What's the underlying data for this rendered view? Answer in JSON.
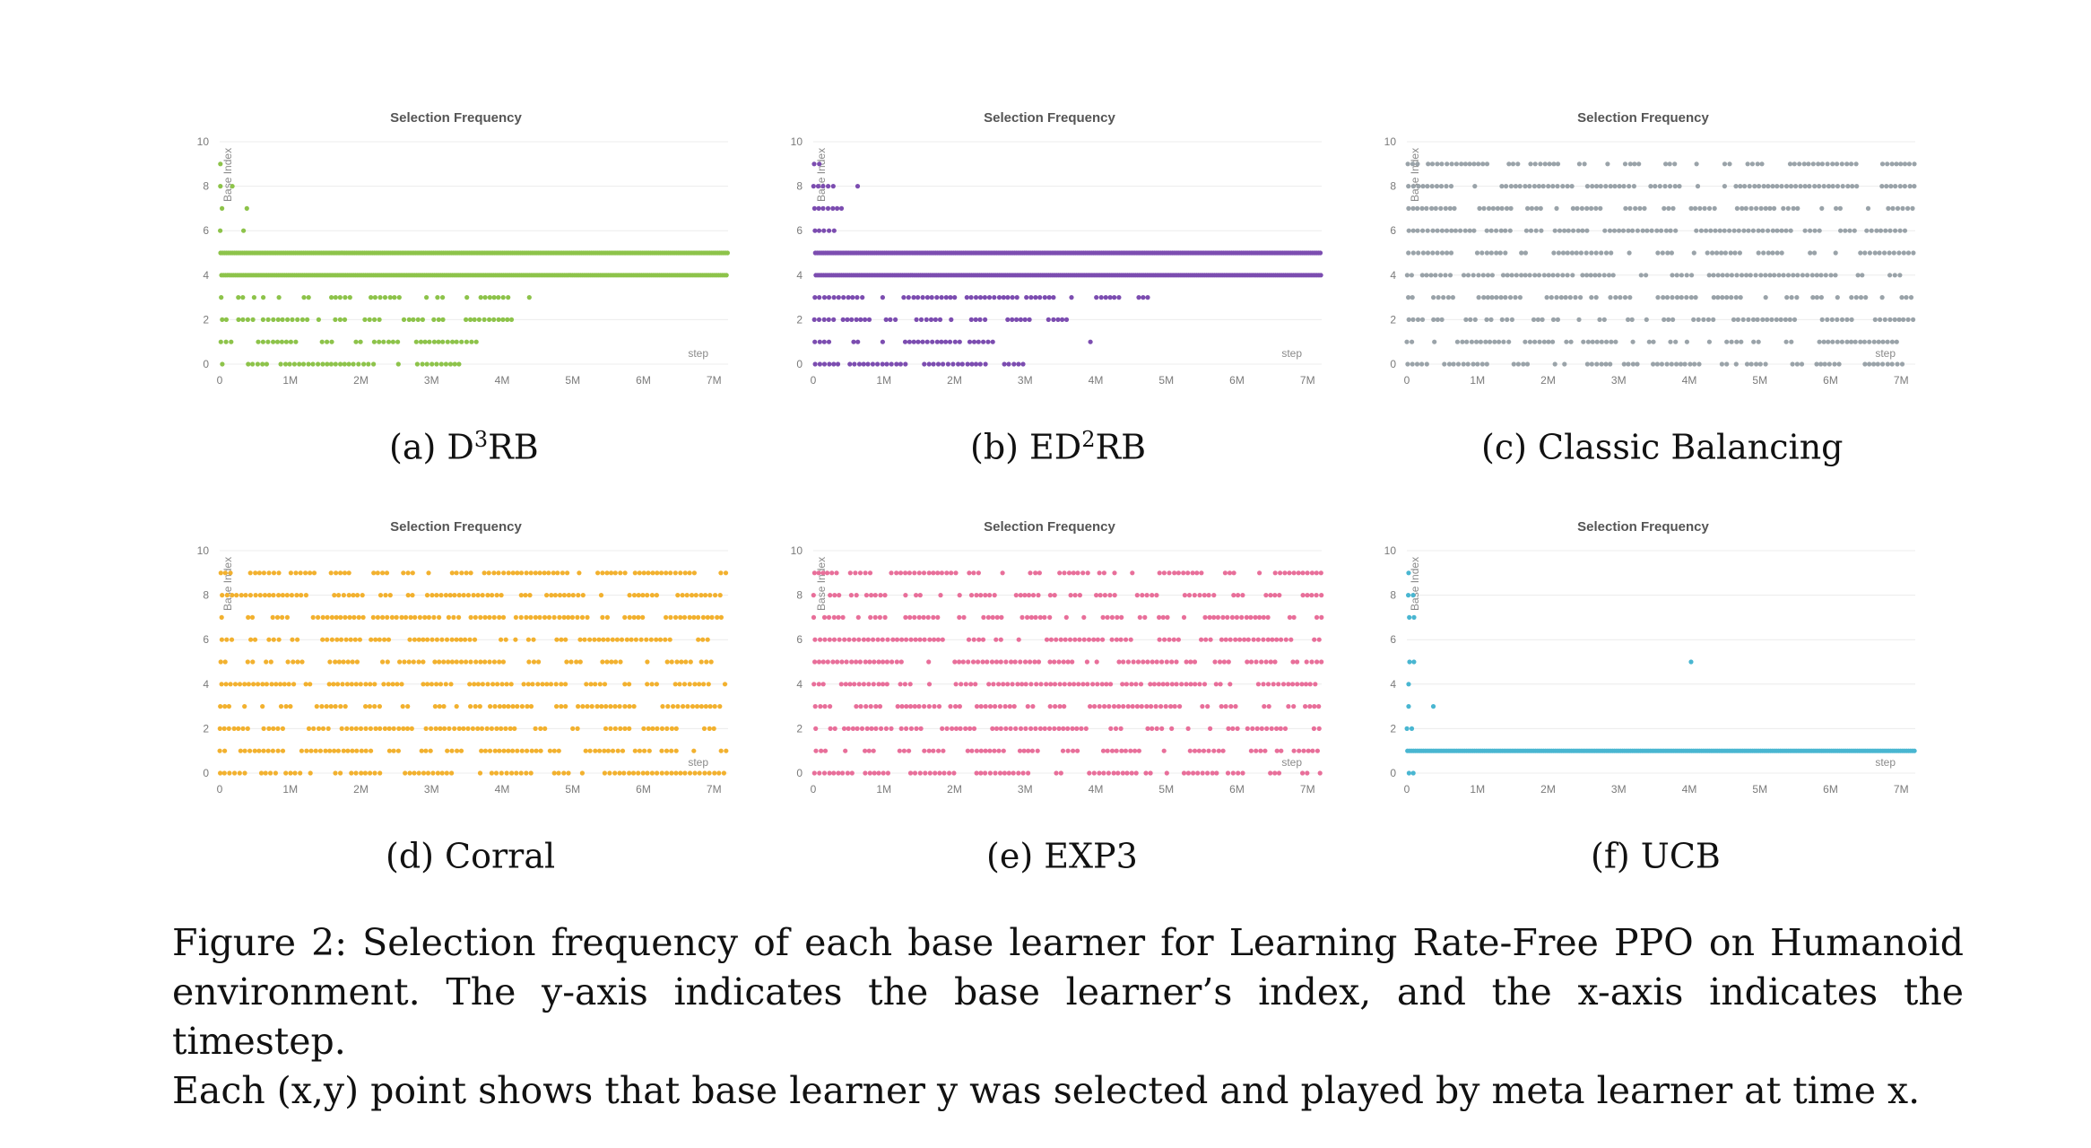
{
  "chart_data": [
    {
      "type": "scatter",
      "title": "Selection Frequency",
      "ylabel": "Base Index",
      "xlabel": "step",
      "xticks": [
        "0",
        "1M",
        "2M",
        "3M",
        "4M",
        "5M",
        "6M",
        "7M"
      ],
      "yticks": [
        "0",
        "2",
        "4",
        "6",
        "8",
        "10"
      ],
      "xlim": [
        0,
        7200000
      ],
      "ylim": [
        0,
        10
      ],
      "color": "#8dc34a",
      "series": [
        {
          "y": 9,
          "x_ranges": [
            [
              0,
              200000
            ]
          ]
        },
        {
          "y": 8,
          "x_ranges": [
            [
              0,
              400000
            ]
          ]
        },
        {
          "y": 7,
          "x_ranges": [
            [
              0,
              400000
            ]
          ]
        },
        {
          "y": 6,
          "x_ranges": [
            [
              0,
              350000
            ]
          ]
        },
        {
          "y": 5,
          "x_ranges": [
            [
              0,
              7200000
            ]
          ]
        },
        {
          "y": 4,
          "x_ranges": [
            [
              0,
              7200000
            ]
          ]
        },
        {
          "y": 3,
          "x_ranges": [
            [
              0,
              4450000
            ]
          ]
        },
        {
          "y": 2,
          "x_ranges": [
            [
              0,
              4250000
            ]
          ]
        },
        {
          "y": 1,
          "x_ranges": [
            [
              0,
              3800000
            ]
          ]
        },
        {
          "y": 0,
          "x_ranges": [
            [
              0,
              3400000
            ]
          ]
        }
      ]
    },
    {
      "type": "scatter",
      "title": "Selection Frequency",
      "ylabel": "Base Index",
      "xlabel": "step",
      "xticks": [
        "0",
        "1M",
        "2M",
        "3M",
        "4M",
        "5M",
        "6M",
        "7M"
      ],
      "yticks": [
        "0",
        "2",
        "4",
        "6",
        "8",
        "10"
      ],
      "xlim": [
        0,
        7200000
      ],
      "ylim": [
        0,
        10
      ],
      "color": "#7c4db0",
      "series": [
        {
          "y": 9,
          "x_ranges": [
            [
              0,
              300000
            ]
          ]
        },
        {
          "y": 8,
          "x_ranges": [
            [
              0,
              650000
            ]
          ]
        },
        {
          "y": 7,
          "x_ranges": [
            [
              0,
              450000
            ]
          ]
        },
        {
          "y": 6,
          "x_ranges": [
            [
              0,
              350000
            ]
          ]
        },
        {
          "y": 5,
          "x_ranges": [
            [
              0,
              7200000
            ]
          ]
        },
        {
          "y": 4,
          "x_ranges": [
            [
              0,
              7200000
            ]
          ]
        },
        {
          "y": 3,
          "x_ranges": [
            [
              0,
              5000000
            ]
          ]
        },
        {
          "y": 2,
          "x_ranges": [
            [
              0,
              3600000
            ]
          ]
        },
        {
          "y": 1,
          "x_ranges": [
            [
              0,
              2600000
            ],
            [
              3900000,
              3950000
            ]
          ]
        },
        {
          "y": 0,
          "x_ranges": [
            [
              0,
              3000000
            ]
          ]
        }
      ]
    },
    {
      "type": "scatter",
      "title": "Selection Frequency",
      "ylabel": "Base Index",
      "xlabel": "step",
      "xticks": [
        "0",
        "1M",
        "2M",
        "3M",
        "4M",
        "5M",
        "6M",
        "7M"
      ],
      "yticks": [
        "0",
        "2",
        "4",
        "6",
        "8",
        "10"
      ],
      "xlim": [
        0,
        7200000
      ],
      "ylim": [
        0,
        10
      ],
      "color": "#9aa3a9",
      "series": [
        {
          "y": 9,
          "x_ranges": [
            [
              0,
              7200000
            ]
          ]
        },
        {
          "y": 8,
          "x_ranges": [
            [
              0,
              7200000
            ]
          ]
        },
        {
          "y": 7,
          "x_ranges": [
            [
              0,
              7200000
            ]
          ]
        },
        {
          "y": 6,
          "x_ranges": [
            [
              0,
              7200000
            ]
          ]
        },
        {
          "y": 5,
          "x_ranges": [
            [
              0,
              7200000
            ]
          ]
        },
        {
          "y": 4,
          "x_ranges": [
            [
              0,
              7200000
            ]
          ]
        },
        {
          "y": 3,
          "x_ranges": [
            [
              0,
              7200000
            ]
          ]
        },
        {
          "y": 2,
          "x_ranges": [
            [
              0,
              7200000
            ]
          ]
        },
        {
          "y": 1,
          "x_ranges": [
            [
              0,
              7200000
            ]
          ]
        },
        {
          "y": 0,
          "x_ranges": [
            [
              0,
              7200000
            ]
          ]
        }
      ]
    },
    {
      "type": "scatter",
      "title": "Selection Frequency",
      "ylabel": "Base Index",
      "xlabel": "step",
      "xticks": [
        "0",
        "1M",
        "2M",
        "3M",
        "4M",
        "5M",
        "6M",
        "7M"
      ],
      "yticks": [
        "0",
        "2",
        "4",
        "6",
        "8",
        "10"
      ],
      "xlim": [
        0,
        7200000
      ],
      "ylim": [
        0,
        10
      ],
      "color": "#f2b12f",
      "series": [
        {
          "y": 9,
          "x_ranges": [
            [
              0,
              7200000
            ]
          ]
        },
        {
          "y": 8,
          "x_ranges": [
            [
              0,
              7200000
            ]
          ]
        },
        {
          "y": 7,
          "x_ranges": [
            [
              0,
              7200000
            ]
          ]
        },
        {
          "y": 6,
          "x_ranges": [
            [
              0,
              7200000
            ]
          ]
        },
        {
          "y": 5,
          "x_ranges": [
            [
              0,
              7200000
            ]
          ]
        },
        {
          "y": 4,
          "x_ranges": [
            [
              0,
              7200000
            ]
          ]
        },
        {
          "y": 3,
          "x_ranges": [
            [
              0,
              7200000
            ]
          ]
        },
        {
          "y": 2,
          "x_ranges": [
            [
              0,
              7200000
            ]
          ]
        },
        {
          "y": 1,
          "x_ranges": [
            [
              0,
              7200000
            ]
          ]
        },
        {
          "y": 0,
          "x_ranges": [
            [
              0,
              7200000
            ]
          ]
        }
      ]
    },
    {
      "type": "scatter",
      "title": "Selection Frequency",
      "ylabel": "Base Index",
      "xlabel": "step",
      "xticks": [
        "0",
        "1M",
        "2M",
        "3M",
        "4M",
        "5M",
        "6M",
        "7M"
      ],
      "yticks": [
        "0",
        "2",
        "4",
        "6",
        "8",
        "10"
      ],
      "xlim": [
        0,
        7200000
      ],
      "ylim": [
        0,
        10
      ],
      "color": "#e86f9a",
      "series": [
        {
          "y": 9,
          "x_ranges": [
            [
              0,
              7200000
            ]
          ]
        },
        {
          "y": 8,
          "x_ranges": [
            [
              0,
              7200000
            ]
          ]
        },
        {
          "y": 7,
          "x_ranges": [
            [
              0,
              7200000
            ]
          ]
        },
        {
          "y": 6,
          "x_ranges": [
            [
              0,
              7200000
            ]
          ]
        },
        {
          "y": 5,
          "x_ranges": [
            [
              0,
              7200000
            ]
          ]
        },
        {
          "y": 4,
          "x_ranges": [
            [
              0,
              7200000
            ]
          ]
        },
        {
          "y": 3,
          "x_ranges": [
            [
              0,
              7200000
            ]
          ]
        },
        {
          "y": 2,
          "x_ranges": [
            [
              0,
              7200000
            ]
          ]
        },
        {
          "y": 1,
          "x_ranges": [
            [
              0,
              7200000
            ]
          ]
        },
        {
          "y": 0,
          "x_ranges": [
            [
              0,
              7200000
            ]
          ]
        }
      ]
    },
    {
      "type": "scatter",
      "title": "Selection Frequency",
      "ylabel": "Base Index",
      "xlabel": "step",
      "xticks": [
        "0",
        "1M",
        "2M",
        "3M",
        "4M",
        "5M",
        "6M",
        "7M"
      ],
      "yticks": [
        "0",
        "2",
        "4",
        "6",
        "8",
        "10"
      ],
      "xlim": [
        0,
        7200000
      ],
      "ylim": [
        0,
        10
      ],
      "color": "#49b6d1",
      "series": [
        {
          "y": 9,
          "x_ranges": [
            [
              0,
              50000
            ]
          ]
        },
        {
          "y": 8,
          "x_ranges": [
            [
              0,
              100000
            ]
          ]
        },
        {
          "y": 7,
          "x_ranges": [
            [
              0,
              150000
            ]
          ]
        },
        {
          "y": 5,
          "x_ranges": [
            [
              0,
              150000
            ],
            [
              4000000,
              4050000
            ]
          ]
        },
        {
          "y": 4,
          "x_ranges": [
            [
              0,
              50000
            ]
          ]
        },
        {
          "y": 3,
          "x_ranges": [
            [
              0,
              50000
            ],
            [
              350000,
              400000
            ]
          ]
        },
        {
          "y": 2,
          "x_ranges": [
            [
              0,
              100000
            ]
          ]
        },
        {
          "y": 1,
          "x_ranges": [
            [
              0,
              7200000
            ]
          ]
        },
        {
          "y": 0,
          "x_ranges": [
            [
              0,
              150000
            ]
          ]
        }
      ]
    }
  ],
  "subcaptions": [
    {
      "prefix": "(a) D",
      "sup": "3",
      "suffix": "RB"
    },
    {
      "prefix": "(b) ED",
      "sup": "2",
      "suffix": "RB"
    },
    {
      "prefix": "(c) Classic Balancing",
      "sup": "",
      "suffix": ""
    },
    {
      "prefix": "(d) Corral",
      "sup": "",
      "suffix": ""
    },
    {
      "prefix": "(e) EXP3",
      "sup": "",
      "suffix": ""
    },
    {
      "prefix": "(f) UCB",
      "sup": "",
      "suffix": ""
    }
  ],
  "caption": {
    "lines": [
      "Figure 2:  Selection frequency of each base learner for Learning Rate-Free PPO on Humanoid",
      "environment. The y-axis indicates the base learner’s index, and the x-axis indicates the timestep.",
      "Each (x,y) point shows that base learner y was selected and played by meta learner at time x."
    ]
  }
}
